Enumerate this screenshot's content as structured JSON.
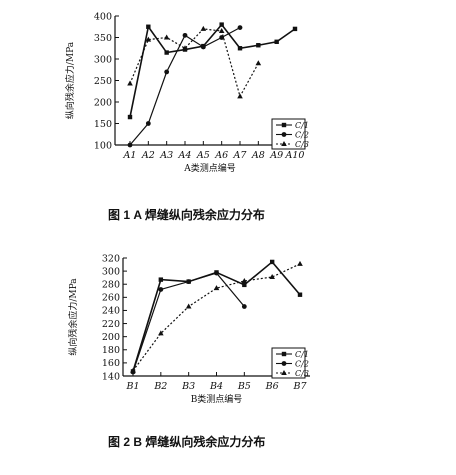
{
  "chart_data": [
    {
      "type": "line",
      "caption": "图 1   A 焊缝纵向残余应力分布",
      "xlabel": "A类测点编号",
      "ylabel": "纵向残余应力/MPa",
      "categories": [
        "A1",
        "A2",
        "A3",
        "A4",
        "A5",
        "A6",
        "A7",
        "A8",
        "A9",
        "A10"
      ],
      "ylim": [
        100,
        400
      ],
      "yticks": [
        100,
        150,
        200,
        250,
        300,
        350,
        400
      ],
      "grid": false,
      "legend_position": "bottom-right",
      "series": [
        {
          "name": "C/1",
          "style": "solid-square",
          "values": [
            165,
            375,
            315,
            322,
            330,
            380,
            325,
            332,
            340,
            370
          ]
        },
        {
          "name": "C/2",
          "style": "solid-circle",
          "values": [
            100,
            150,
            270,
            355,
            328,
            350,
            373,
            null,
            null,
            null
          ]
        },
        {
          "name": "C/3",
          "style": "dotted-triangle",
          "values": [
            243,
            345,
            350,
            325,
            370,
            365,
            213,
            290,
            null,
            null
          ]
        }
      ]
    },
    {
      "type": "line",
      "caption": "图 2   B 焊缝纵向残余应力分布",
      "xlabel": "B类测点编号",
      "ylabel": "纵向残余应力/MPa",
      "categories": [
        "B1",
        "B2",
        "B3",
        "B4",
        "B5",
        "B6",
        "B7"
      ],
      "ylim": [
        140,
        320
      ],
      "yticks": [
        140,
        160,
        180,
        200,
        220,
        240,
        260,
        280,
        300,
        320
      ],
      "grid": false,
      "legend_position": "bottom-right",
      "series": [
        {
          "name": "C/1",
          "style": "solid-square",
          "values": [
            147,
            287,
            284,
            298,
            279,
            314,
            264
          ]
        },
        {
          "name": "C/2",
          "style": "solid-circle",
          "values": [
            146,
            272,
            284,
            297,
            246,
            null,
            null
          ]
        },
        {
          "name": "C/3",
          "style": "dotted-triangle",
          "values": [
            148,
            205,
            246,
            274,
            285,
            291,
            311
          ]
        }
      ]
    }
  ]
}
